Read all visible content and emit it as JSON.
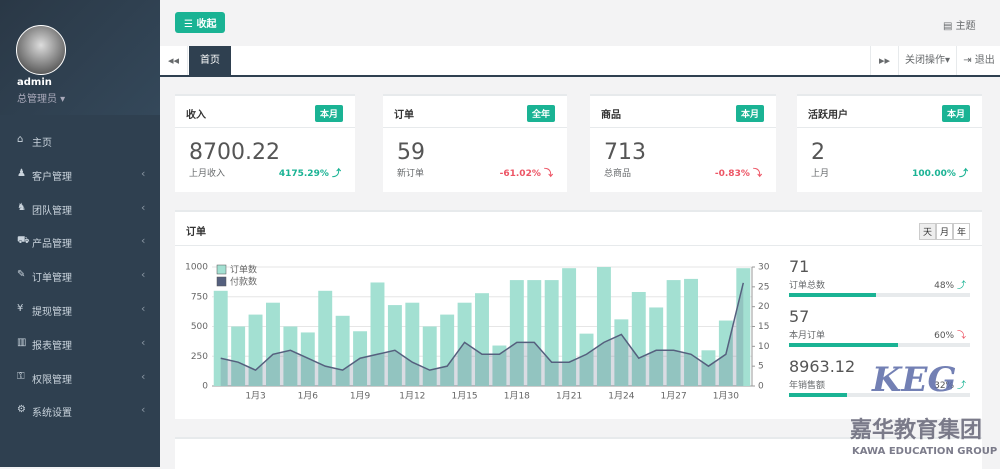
{
  "sidebar": {
    "user": "admin",
    "role": "总管理员",
    "menu": [
      "主页",
      "客户管理",
      "团队管理",
      "产品管理",
      "订单管理",
      "提现管理",
      "报表管理",
      "权限管理",
      "系统设置"
    ]
  },
  "header": {
    "toggle": "收起",
    "theme": "主题"
  },
  "tabs": {
    "items": [
      "首页"
    ],
    "close": "关闭操作",
    "logout": "退出"
  },
  "cards": [
    {
      "title": "收入",
      "badge": "本月",
      "value": "8700.22",
      "sub": "上月收入",
      "change": "4175.29%",
      "trend": "up"
    },
    {
      "title": "订单",
      "badge": "全年",
      "value": "59",
      "sub": "新订单",
      "change": "-61.02%",
      "trend": "down"
    },
    {
      "title": "商品",
      "badge": "本月",
      "value": "713",
      "sub": "总商品",
      "change": "-0.83%",
      "trend": "down"
    },
    {
      "title": "活跃用户",
      "badge": "本月",
      "value": "2",
      "sub": "上月",
      "change": "100.00%",
      "trend": "up"
    }
  ],
  "panel": {
    "title": "订单",
    "ranges": [
      "天",
      "月",
      "年"
    ]
  },
  "chart_data": {
    "type": "bar",
    "categories": [
      null,
      null,
      "1月3",
      null,
      null,
      "1月6",
      null,
      null,
      "1月9",
      null,
      null,
      "1月12",
      null,
      null,
      "1月15",
      null,
      null,
      "1月18",
      null,
      null,
      "1月21",
      null,
      null,
      "1月24",
      null,
      null,
      "1月27",
      null,
      null,
      "1月30",
      null
    ],
    "series": [
      {
        "name": "订单数",
        "color": "#a3e0d2",
        "values": [
          800,
          500,
          600,
          700,
          500,
          450,
          800,
          590,
          460,
          870,
          680,
          700,
          500,
          600,
          700,
          780,
          340,
          890,
          890,
          890,
          990,
          440,
          1000,
          560,
          790,
          660,
          890,
          900,
          300,
          550,
          990
        ]
      },
      {
        "name": "付款数",
        "type": "line",
        "axis": "y2",
        "color": "#55607e",
        "values": [
          7,
          6,
          4,
          8,
          9,
          7,
          5,
          4,
          7,
          8,
          9,
          6,
          4,
          5,
          11,
          8,
          8,
          11,
          11,
          6,
          6,
          8,
          11,
          13,
          7,
          9,
          9,
          8,
          5,
          8,
          26
        ]
      }
    ],
    "ylim": [
      0,
      1000
    ],
    "yticks": [
      0,
      250,
      500,
      750,
      1000
    ],
    "y2lim": [
      0,
      30
    ],
    "y2ticks": [
      0,
      5,
      10,
      15,
      20,
      25,
      30
    ],
    "grid": true
  },
  "summary": [
    {
      "value": "71",
      "label": "订单总数",
      "percent": "48%",
      "progress": 48,
      "trend": "up"
    },
    {
      "value": "57",
      "label": "本月订单",
      "percent": "60%",
      "progress": 60,
      "trend": "down"
    },
    {
      "value": "8963.12",
      "label": "年销售额",
      "percent": "32%",
      "progress": 32,
      "trend": "up"
    }
  ],
  "watermark": {
    "logo": "KEG",
    "name": "嘉华教育集团",
    "english": "KAWA EDUCATION GROUP"
  }
}
